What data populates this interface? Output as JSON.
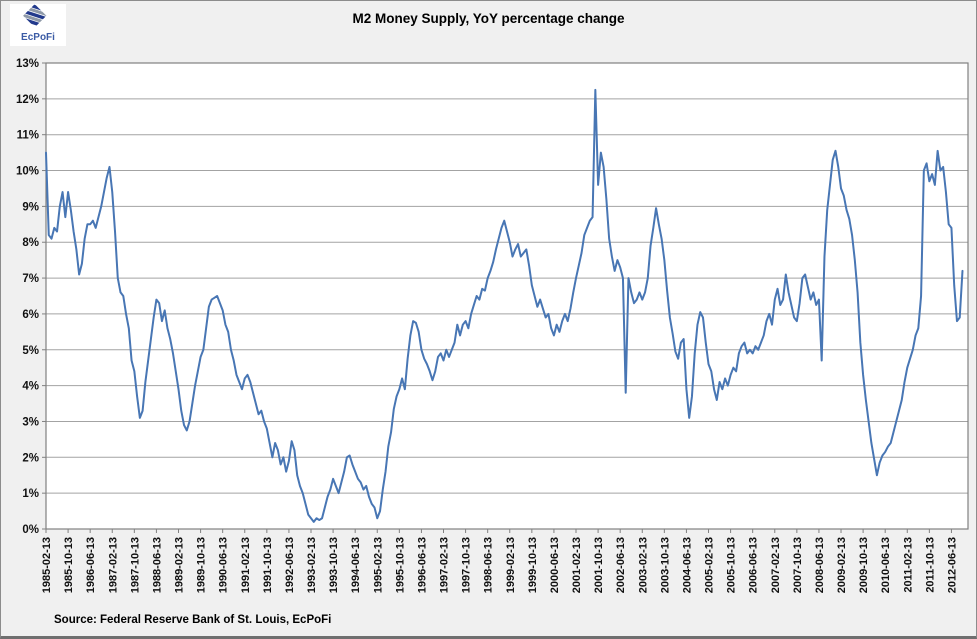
{
  "header": {
    "title": "M2 Money Supply, YoY percentage change"
  },
  "logo": {
    "text": "EcPoFi"
  },
  "footer": {
    "source": "Source: Federal Reserve Bank of St. Louis, EcPoFi"
  },
  "colors": {
    "background": "#f0f0f0",
    "plot_background": "#ffffff",
    "plot_border": "#808080",
    "gridline": "#a3a3a3",
    "tick": "#808080",
    "line": "#4876b4",
    "axis_text": "#111111",
    "logo_navy": "#223a8c",
    "logo_gray": "#8e99a8",
    "logo_blue": "#3b5ba5"
  },
  "chart_data": {
    "type": "line",
    "title": "M2 Money Supply, YoY percentage change",
    "series_name": "M2 money supply, YoY percentage change",
    "x_start": "1985-02",
    "x_end": "2012-10",
    "x_freq": "monthly",
    "ylim": [
      0,
      13
    ],
    "y_tick_labels": [
      "0%",
      "1%",
      "2%",
      "3%",
      "4%",
      "5%",
      "6%",
      "7%",
      "8%",
      "9%",
      "10%",
      "11%",
      "12%",
      "13%"
    ],
    "x_tick_month_interval": 8,
    "x_tick_labels": [
      "1985-02-13",
      "1985-10-13",
      "1986-06-13",
      "1987-02-13",
      "1987-10-13",
      "1988-06-13",
      "1989-02-13",
      "1989-10-13",
      "1990-06-13",
      "1991-02-13",
      "1991-10-13",
      "1992-06-13",
      "1993-02-13",
      "1993-10-13",
      "1994-06-13",
      "1995-02-13",
      "1995-10-13",
      "1996-06-13",
      "1997-02-13",
      "1997-10-13",
      "1998-06-13",
      "1999-02-13",
      "1999-10-13",
      "2000-06-13",
      "2001-02-13",
      "2001-10-13",
      "2002-06-13",
      "2003-02-13",
      "2003-10-13",
      "2004-06-13",
      "2005-02-13",
      "2005-10-13",
      "2006-06-13",
      "2007-02-13",
      "2007-10-13",
      "2008-06-13",
      "2009-02-13",
      "2009-10-13",
      "2010-06-13",
      "2011-02-13",
      "2011-10-13",
      "2012-06-13"
    ],
    "grid": "horizontal",
    "legend": "none",
    "values": [
      10.5,
      8.2,
      8.1,
      8.4,
      8.3,
      9.0,
      9.4,
      8.7,
      9.4,
      8.9,
      8.3,
      7.8,
      7.1,
      7.4,
      8.1,
      8.5,
      8.5,
      8.6,
      8.4,
      8.7,
      9.0,
      9.4,
      9.8,
      10.1,
      9.4,
      8.3,
      7.0,
      6.6,
      6.5,
      6.0,
      5.6,
      4.7,
      4.4,
      3.7,
      3.1,
      3.3,
      4.1,
      4.7,
      5.3,
      5.9,
      6.4,
      6.3,
      5.8,
      6.1,
      5.6,
      5.3,
      4.9,
      4.4,
      3.9,
      3.3,
      2.9,
      2.75,
      3.0,
      3.5,
      4.0,
      4.4,
      4.8,
      5.0,
      5.6,
      6.2,
      6.4,
      6.45,
      6.5,
      6.3,
      6.1,
      5.7,
      5.5,
      5.0,
      4.7,
      4.3,
      4.1,
      3.9,
      4.2,
      4.3,
      4.1,
      3.8,
      3.5,
      3.2,
      3.3,
      3.0,
      2.8,
      2.4,
      2.0,
      2.4,
      2.2,
      1.8,
      2.0,
      1.6,
      1.9,
      2.45,
      2.2,
      1.5,
      1.2,
      1.0,
      0.7,
      0.4,
      0.3,
      0.2,
      0.3,
      0.25,
      0.3,
      0.6,
      0.9,
      1.1,
      1.4,
      1.2,
      1.0,
      1.3,
      1.6,
      2.0,
      2.05,
      1.8,
      1.6,
      1.4,
      1.3,
      1.1,
      1.2,
      0.9,
      0.7,
      0.6,
      0.3,
      0.5,
      1.1,
      1.6,
      2.3,
      2.7,
      3.35,
      3.7,
      3.9,
      4.2,
      3.9,
      4.75,
      5.4,
      5.8,
      5.75,
      5.5,
      5.0,
      4.75,
      4.6,
      4.4,
      4.15,
      4.4,
      4.8,
      4.9,
      4.7,
      5.0,
      4.8,
      5.0,
      5.2,
      5.7,
      5.4,
      5.7,
      5.8,
      5.6,
      6.0,
      6.25,
      6.5,
      6.4,
      6.7,
      6.65,
      7.0,
      7.2,
      7.45,
      7.8,
      8.1,
      8.4,
      8.6,
      8.3,
      8.0,
      7.6,
      7.8,
      7.95,
      7.6,
      7.7,
      7.8,
      7.35,
      6.8,
      6.5,
      6.2,
      6.4,
      6.15,
      5.9,
      6.0,
      5.6,
      5.4,
      5.7,
      5.5,
      5.8,
      6.0,
      5.8,
      6.15,
      6.6,
      7.0,
      7.35,
      7.7,
      8.2,
      8.4,
      8.6,
      8.7,
      12.25,
      9.6,
      10.5,
      10.1,
      9.2,
      8.1,
      7.6,
      7.2,
      7.5,
      7.3,
      7.0,
      3.8,
      7.0,
      6.6,
      6.3,
      6.4,
      6.6,
      6.4,
      6.6,
      7.0,
      7.9,
      8.4,
      8.95,
      8.5,
      8.1,
      7.5,
      6.65,
      5.9,
      5.45,
      4.95,
      4.75,
      5.2,
      5.3,
      3.9,
      3.1,
      3.7,
      4.9,
      5.7,
      6.05,
      5.9,
      5.2,
      4.6,
      4.4,
      3.9,
      3.6,
      4.1,
      3.9,
      4.2,
      4.0,
      4.3,
      4.5,
      4.4,
      4.9,
      5.1,
      5.2,
      4.9,
      5.0,
      4.9,
      5.1,
      5.0,
      5.2,
      5.4,
      5.8,
      6.0,
      5.7,
      6.4,
      6.7,
      6.25,
      6.4,
      7.1,
      6.6,
      6.25,
      5.9,
      5.8,
      6.3,
      7.0,
      7.1,
      6.75,
      6.4,
      6.6,
      6.25,
      6.4,
      4.7,
      7.6,
      8.9,
      9.6,
      10.3,
      10.55,
      10.1,
      9.5,
      9.3,
      8.9,
      8.65,
      8.2,
      7.5,
      6.6,
      5.2,
      4.3,
      3.6,
      3.0,
      2.4,
      1.95,
      1.5,
      1.85,
      2.05,
      2.15,
      2.3,
      2.4,
      2.7,
      3.0,
      3.3,
      3.6,
      4.1,
      4.5,
      4.75,
      5.0,
      5.4,
      5.6,
      6.5,
      10.0,
      10.2,
      9.7,
      9.9,
      9.6,
      10.55,
      10.0,
      10.1,
      9.4,
      8.5,
      8.4,
      6.8,
      5.8,
      5.9,
      7.2
    ]
  }
}
